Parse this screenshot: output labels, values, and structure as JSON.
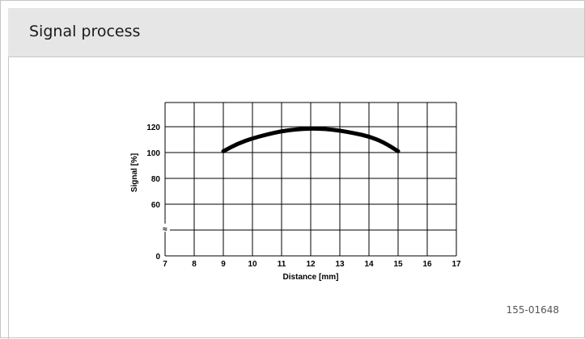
{
  "header": {
    "title": "Signal process"
  },
  "figure_id": "155-01648",
  "chart_data": {
    "type": "line",
    "xlabel": "Distance [mm]",
    "ylabel": "Signal [%]",
    "xlim": [
      7,
      17
    ],
    "x_ticks": [
      "7",
      "8",
      "9",
      "10",
      "11",
      "12",
      "13",
      "14",
      "15",
      "16",
      "17"
    ],
    "y_ticks": [
      "0",
      "60",
      "80",
      "100",
      "120"
    ],
    "y_axis_break": true,
    "break_symbol": "≈",
    "grid": true,
    "series": [
      {
        "x": [
          9,
          9.5,
          10,
          10.5,
          11,
          11.5,
          12,
          12.5,
          13,
          13.5,
          14,
          14.5,
          15
        ],
        "y": [
          101,
          107,
          111,
          114,
          116.5,
          118,
          118.6,
          118.3,
          117,
          115,
          112.5,
          108,
          101
        ]
      }
    ]
  }
}
